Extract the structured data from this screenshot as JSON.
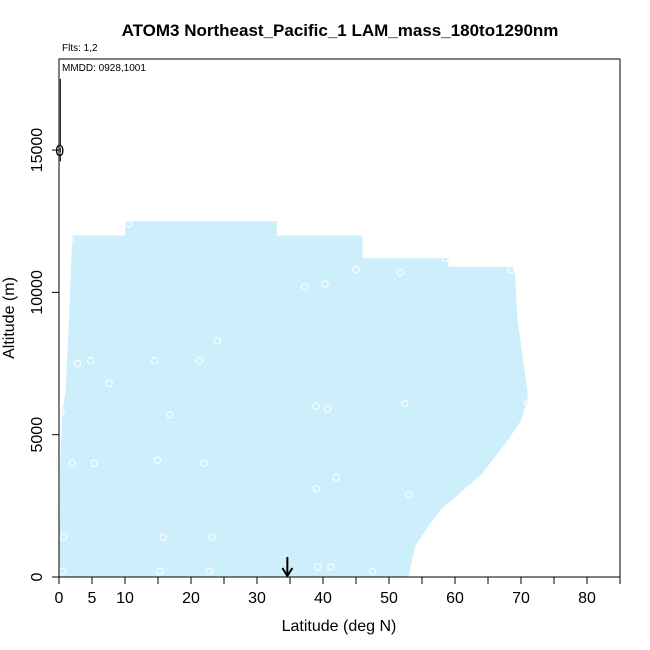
{
  "chart_data": {
    "type": "area",
    "title": "ATOM3 Northeast_Pacific_1 LAM_mass_180to1290nm",
    "flights_label": "Flts: 1,2",
    "dates_label": "MMDD: 0928,1001",
    "xlabel": "Latitude (deg N)",
    "ylabel": "Altitude (m)",
    "xlim": [
      0,
      85
    ],
    "ylim": [
      0,
      18200
    ],
    "x_ticks": [
      0,
      5,
      10,
      20,
      30,
      40,
      50,
      60,
      70,
      80
    ],
    "x_minor_ticks": [
      15,
      25,
      35,
      45,
      55,
      65,
      75,
      85
    ],
    "y_ticks": [
      0,
      5000,
      10000,
      15000
    ],
    "colorbar_zero_label": "0",
    "fill_color": "#cdeffc",
    "arrow_marker": {
      "x": 34.6,
      "label": ""
    },
    "coverage_envelope": {
      "left_edge": [
        [
          0,
          0
        ],
        [
          0.2,
          4000
        ],
        [
          0.5,
          5800
        ],
        [
          1.0,
          6500
        ],
        [
          1.5,
          9000
        ],
        [
          2.0,
          12000
        ]
      ],
      "top_edge": [
        [
          2,
          12000
        ],
        [
          10,
          12000
        ],
        [
          10,
          12500
        ],
        [
          33,
          12500
        ],
        [
          33,
          12000
        ],
        [
          46,
          12000
        ],
        [
          46,
          11200
        ],
        [
          59,
          11200
        ],
        [
          59,
          10900
        ],
        [
          69,
          10900
        ]
      ],
      "right_edge": [
        [
          69,
          10900
        ],
        [
          69.5,
          9000
        ],
        [
          70.5,
          7300
        ],
        [
          71,
          6500
        ],
        [
          71,
          6200
        ],
        [
          70,
          5500
        ],
        [
          68,
          4800
        ],
        [
          66,
          4200
        ],
        [
          64,
          3600
        ],
        [
          61,
          3000
        ],
        [
          58,
          2400
        ],
        [
          56,
          1800
        ],
        [
          54,
          1100
        ],
        [
          53.5,
          600
        ],
        [
          53,
          0
        ]
      ]
    },
    "sample_points": [
      {
        "lat": 0.5,
        "alt": 200
      },
      {
        "lat": 0.7,
        "alt": 1400
      },
      {
        "lat": 2,
        "alt": 4000
      },
      {
        "lat": 5.3,
        "alt": 4000
      },
      {
        "lat": 2.8,
        "alt": 7500
      },
      {
        "lat": 4.8,
        "alt": 7600
      },
      {
        "lat": 7.6,
        "alt": 6800
      },
      {
        "lat": 14.5,
        "alt": 7600
      },
      {
        "lat": 21.3,
        "alt": 7600
      },
      {
        "lat": 24,
        "alt": 8300
      },
      {
        "lat": 16.8,
        "alt": 5700
      },
      {
        "lat": 14.9,
        "alt": 4100
      },
      {
        "lat": 22,
        "alt": 4000
      },
      {
        "lat": 15.8,
        "alt": 1400
      },
      {
        "lat": 23.2,
        "alt": 1400
      },
      {
        "lat": 15.3,
        "alt": 200
      },
      {
        "lat": 22.8,
        "alt": 200
      },
      {
        "lat": 39.2,
        "alt": 350
      },
      {
        "lat": 41.2,
        "alt": 350
      },
      {
        "lat": 47.5,
        "alt": 200
      },
      {
        "lat": 53.8,
        "alt": 350
      },
      {
        "lat": 39,
        "alt": 3100
      },
      {
        "lat": 42,
        "alt": 3500
      },
      {
        "lat": 53,
        "alt": 2900
      },
      {
        "lat": 38.9,
        "alt": 6000
      },
      {
        "lat": 40.7,
        "alt": 5900
      },
      {
        "lat": 52.4,
        "alt": 6100
      },
      {
        "lat": 71,
        "alt": 6100
      },
      {
        "lat": 37.2,
        "alt": 10200
      },
      {
        "lat": 40.3,
        "alt": 10300
      },
      {
        "lat": 45,
        "alt": 10800
      },
      {
        "lat": 51.7,
        "alt": 10700
      },
      {
        "lat": 58.5,
        "alt": 11200
      },
      {
        "lat": 68.5,
        "alt": 10800
      },
      {
        "lat": 1.8,
        "alt": 11800
      },
      {
        "lat": 10.5,
        "alt": 12400
      },
      {
        "lat": 19.7,
        "alt": 12800
      },
      {
        "lat": 0.3,
        "alt": 5800
      },
      {
        "lat": 0.2,
        "alt": 15000
      }
    ]
  }
}
